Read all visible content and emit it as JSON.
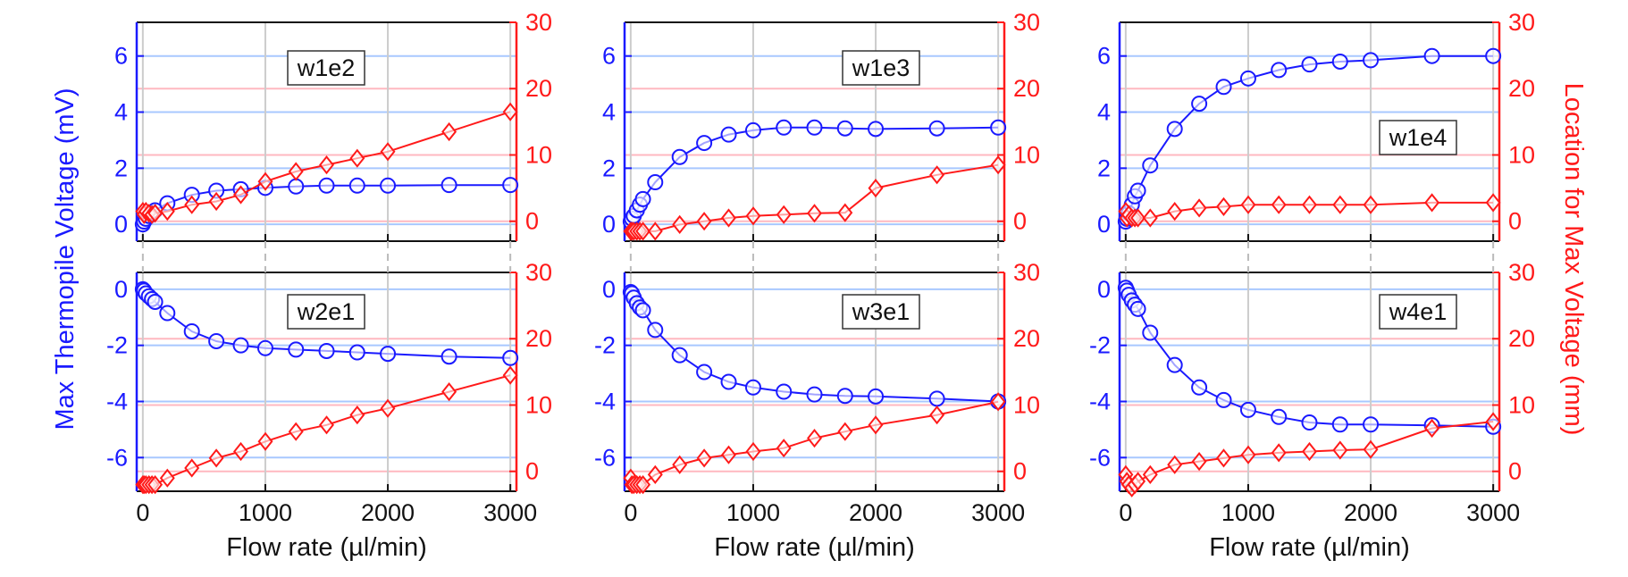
{
  "colors": {
    "voltage": "#1a1aff",
    "location": "#ff1a1a",
    "frame": "#111111"
  },
  "figure": {
    "xlabel": "Flow rate (µl/min)",
    "ylabel_left": "Max Thermopile Voltage (mV)",
    "ylabel_right": "Location for Max Voltage (mm)"
  },
  "chart_data": [
    {
      "type": "line",
      "panel": "w1e2",
      "x": [
        0,
        10,
        25,
        50,
        75,
        100,
        200,
        400,
        600,
        800,
        1000,
        1250,
        1500,
        1750,
        2000,
        2500,
        3000
      ],
      "xlim": [
        -50,
        3050
      ],
      "xticks": [
        0,
        1000,
        2000,
        3000
      ],
      "ylim_left": [
        -0.6,
        7.2
      ],
      "yticks_left": [
        0,
        2,
        4,
        6
      ],
      "ylim_right": [
        -3,
        30
      ],
      "yticks_right": [
        0,
        10,
        20,
        30
      ],
      "series": [
        {
          "axis": "left",
          "marker": "circle",
          "values": [
            0.0,
            0.1,
            0.2,
            0.3,
            0.4,
            0.5,
            0.75,
            1.05,
            1.2,
            1.25,
            1.3,
            1.35,
            1.38,
            1.38,
            1.38,
            1.4,
            1.4
          ]
        },
        {
          "axis": "right",
          "marker": "diamond",
          "values": [
            1.5,
            1.0,
            1.5,
            1.2,
            1.0,
            1.2,
            1.5,
            2.5,
            3.0,
            4.0,
            6.0,
            7.5,
            8.5,
            9.5,
            10.5,
            13.5,
            16.5
          ]
        }
      ]
    },
    {
      "type": "line",
      "panel": "w1e3",
      "x": [
        0,
        10,
        25,
        50,
        75,
        100,
        200,
        400,
        600,
        800,
        1000,
        1250,
        1500,
        1750,
        2000,
        2500,
        3000
      ],
      "xlim": [
        -50,
        3050
      ],
      "xticks": [
        0,
        1000,
        2000,
        3000
      ],
      "ylim_left": [
        -0.6,
        7.2
      ],
      "yticks_left": [
        0,
        2,
        4,
        6
      ],
      "ylim_right": [
        -3,
        30
      ],
      "yticks_right": [
        0,
        10,
        20,
        30
      ],
      "series": [
        {
          "axis": "left",
          "marker": "circle",
          "values": [
            0.1,
            0.2,
            0.3,
            0.5,
            0.7,
            0.9,
            1.5,
            2.4,
            2.9,
            3.2,
            3.35,
            3.45,
            3.45,
            3.42,
            3.4,
            3.42,
            3.45
          ]
        },
        {
          "axis": "right",
          "marker": "diamond",
          "values": [
            -1.5,
            -1.5,
            -1.5,
            -1.5,
            -1.5,
            -1.5,
            -1.5,
            -0.5,
            0.0,
            0.5,
            0.8,
            1.0,
            1.2,
            1.3,
            5.0,
            7.0,
            8.5
          ]
        }
      ]
    },
    {
      "type": "line",
      "panel": "w1e4",
      "x": [
        0,
        10,
        25,
        50,
        75,
        100,
        200,
        400,
        600,
        800,
        1000,
        1250,
        1500,
        1750,
        2000,
        2500,
        3000
      ],
      "xlim": [
        -50,
        3050
      ],
      "xticks": [
        0,
        1000,
        2000,
        3000
      ],
      "ylim_left": [
        -0.6,
        7.2
      ],
      "yticks_left": [
        0,
        2,
        4,
        6
      ],
      "ylim_right": [
        -3,
        30
      ],
      "yticks_right": [
        0,
        10,
        20,
        30
      ],
      "series": [
        {
          "axis": "left",
          "marker": "circle",
          "values": [
            0.1,
            0.2,
            0.4,
            0.7,
            1.0,
            1.2,
            2.1,
            3.4,
            4.3,
            4.9,
            5.2,
            5.5,
            5.7,
            5.8,
            5.85,
            6.0,
            6.0
          ]
        },
        {
          "axis": "right",
          "marker": "diamond",
          "values": [
            1.5,
            0.5,
            1.0,
            0.5,
            0.5,
            0.5,
            0.5,
            1.5,
            2.0,
            2.2,
            2.5,
            2.5,
            2.5,
            2.5,
            2.5,
            2.8,
            2.8
          ]
        }
      ]
    },
    {
      "type": "line",
      "panel": "w2e1",
      "x": [
        0,
        10,
        25,
        50,
        75,
        100,
        200,
        400,
        600,
        800,
        1000,
        1250,
        1500,
        1750,
        2000,
        2500,
        3000
      ],
      "xlim": [
        -50,
        3050
      ],
      "xticks": [
        0,
        1000,
        2000,
        3000
      ],
      "ylim_left": [
        -7.2,
        0.6
      ],
      "yticks_left": [
        0,
        -2,
        -4,
        -6
      ],
      "ylim_right": [
        -3,
        30
      ],
      "yticks_right": [
        0,
        10,
        20,
        30
      ],
      "series": [
        {
          "axis": "left",
          "marker": "circle",
          "values": [
            0.0,
            -0.05,
            -0.15,
            -0.25,
            -0.35,
            -0.45,
            -0.85,
            -1.5,
            -1.85,
            -2.0,
            -2.1,
            -2.15,
            -2.2,
            -2.25,
            -2.3,
            -2.4,
            -2.45
          ]
        },
        {
          "axis": "right",
          "marker": "diamond",
          "values": [
            -2.0,
            -2.0,
            -2.0,
            -2.0,
            -2.0,
            -2.0,
            -1.0,
            0.5,
            2.0,
            3.0,
            4.5,
            6.0,
            7.0,
            8.5,
            9.5,
            12.0,
            14.5
          ]
        }
      ]
    },
    {
      "type": "line",
      "panel": "w3e1",
      "x": [
        0,
        10,
        25,
        50,
        75,
        100,
        200,
        400,
        600,
        800,
        1000,
        1250,
        1500,
        1750,
        2000,
        2500,
        3000
      ],
      "xlim": [
        -50,
        3050
      ],
      "xticks": [
        0,
        1000,
        2000,
        3000
      ],
      "ylim_left": [
        -7.2,
        0.6
      ],
      "yticks_left": [
        0,
        -2,
        -4,
        -6
      ],
      "ylim_right": [
        -3,
        30
      ],
      "yticks_right": [
        0,
        10,
        20,
        30
      ],
      "series": [
        {
          "axis": "left",
          "marker": "circle",
          "values": [
            -0.1,
            -0.15,
            -0.3,
            -0.5,
            -0.65,
            -0.75,
            -1.45,
            -2.35,
            -2.95,
            -3.3,
            -3.5,
            -3.65,
            -3.75,
            -3.8,
            -3.82,
            -3.9,
            -4.0
          ]
        },
        {
          "axis": "right",
          "marker": "diamond",
          "values": [
            -1.0,
            -2.0,
            -2.0,
            -2.0,
            -2.0,
            -2.0,
            -0.5,
            1.0,
            2.0,
            2.5,
            3.0,
            3.5,
            5.0,
            6.0,
            7.0,
            8.5,
            10.5
          ]
        }
      ]
    },
    {
      "type": "line",
      "panel": "w4e1",
      "x": [
        0,
        10,
        25,
        50,
        75,
        100,
        200,
        400,
        600,
        800,
        1000,
        1250,
        1500,
        1750,
        2000,
        2500,
        3000
      ],
      "xlim": [
        -50,
        3050
      ],
      "xticks": [
        0,
        1000,
        2000,
        3000
      ],
      "ylim_left": [
        -7.2,
        0.6
      ],
      "yticks_left": [
        0,
        -2,
        -4,
        -6
      ],
      "ylim_right": [
        -3,
        30
      ],
      "yticks_right": [
        0,
        10,
        20,
        30
      ],
      "series": [
        {
          "axis": "left",
          "marker": "circle",
          "values": [
            0.05,
            -0.05,
            -0.2,
            -0.4,
            -0.55,
            -0.7,
            -1.55,
            -2.7,
            -3.5,
            -3.95,
            -4.3,
            -4.55,
            -4.75,
            -4.82,
            -4.82,
            -4.85,
            -4.9
          ]
        },
        {
          "axis": "right",
          "marker": "diamond",
          "values": [
            -0.5,
            -1.5,
            -2.0,
            -2.5,
            -2.0,
            -1.5,
            -0.5,
            1.0,
            1.5,
            2.0,
            2.5,
            2.8,
            3.0,
            3.2,
            3.3,
            6.5,
            7.5
          ]
        }
      ]
    }
  ]
}
